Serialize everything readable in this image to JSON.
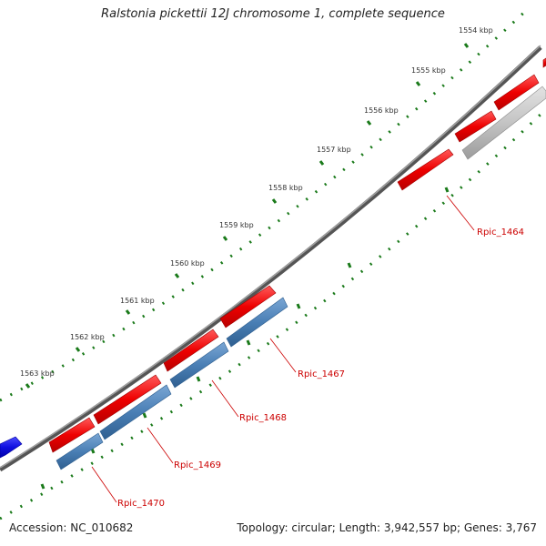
{
  "title": "Ralstonia pickettii 12J chromosome 1, complete sequence",
  "footer": {
    "accession": "Accession: NC_010682",
    "info": "Topology: circular; Length: 3,942,557 bp; Genes: 3,767"
  },
  "colors": {
    "backbone": "#808080",
    "forward_gene": "#ee0000",
    "reverse_gene": "#4a7fb5",
    "pseudo_gene": "#bdbdbd",
    "other_gene": "#1010e0",
    "tick_dots": "#1a7a1a",
    "label_text": "#cc0000"
  },
  "ticks": [
    {
      "label": "1554 kbp"
    },
    {
      "label": "1555 kbp"
    },
    {
      "label": "1556 kbp"
    },
    {
      "label": "1557 kbp"
    },
    {
      "label": "1558 kbp"
    },
    {
      "label": "1559 kbp"
    },
    {
      "label": "1560 kbp"
    },
    {
      "label": "1561 kbp"
    },
    {
      "label": "1562 kbp"
    },
    {
      "label": "1563 kbp"
    }
  ],
  "gene_labels": [
    {
      "text": "Rpic_1464"
    },
    {
      "text": "Rpic_1467"
    },
    {
      "text": "Rpic_1468"
    },
    {
      "text": "Rpic_1469"
    },
    {
      "text": "Rpic_1470"
    }
  ]
}
